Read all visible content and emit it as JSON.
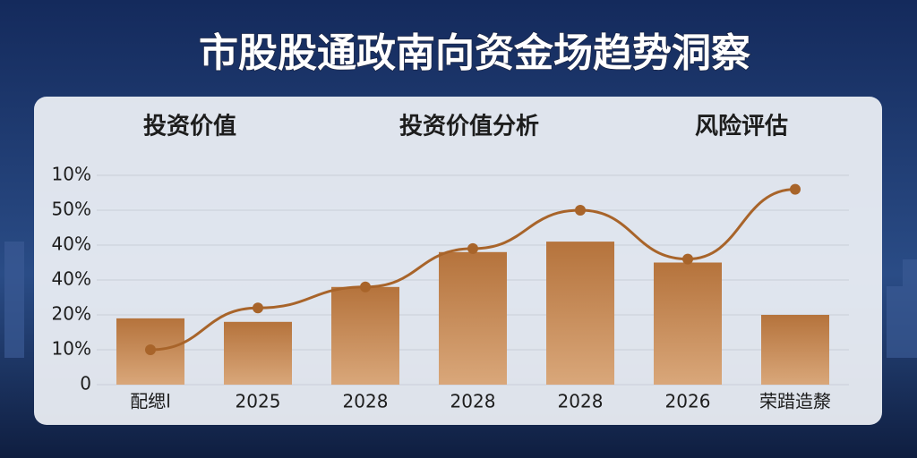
{
  "chart_data": {
    "type": "bar",
    "title": "市股股通政南向资金场趋势洞察",
    "headers": [
      "投资价值",
      "投资价值分析",
      "风险评估"
    ],
    "categories": [
      "配缌l",
      "2025",
      "2028",
      "2028",
      "2028",
      "2026",
      "荣踖造漦"
    ],
    "values": [
      19,
      18,
      28,
      38,
      41,
      35,
      20
    ],
    "color": "#b5733c",
    "line": {
      "color": "#a8642a",
      "values": [
        10,
        22,
        28,
        39,
        50,
        36,
        56
      ]
    },
    "ylim": [
      0,
      60
    ],
    "y_labels": [
      "0",
      "10%",
      "20%",
      "40%",
      "40%",
      "50%",
      "10%"
    ],
    "grid": true
  }
}
